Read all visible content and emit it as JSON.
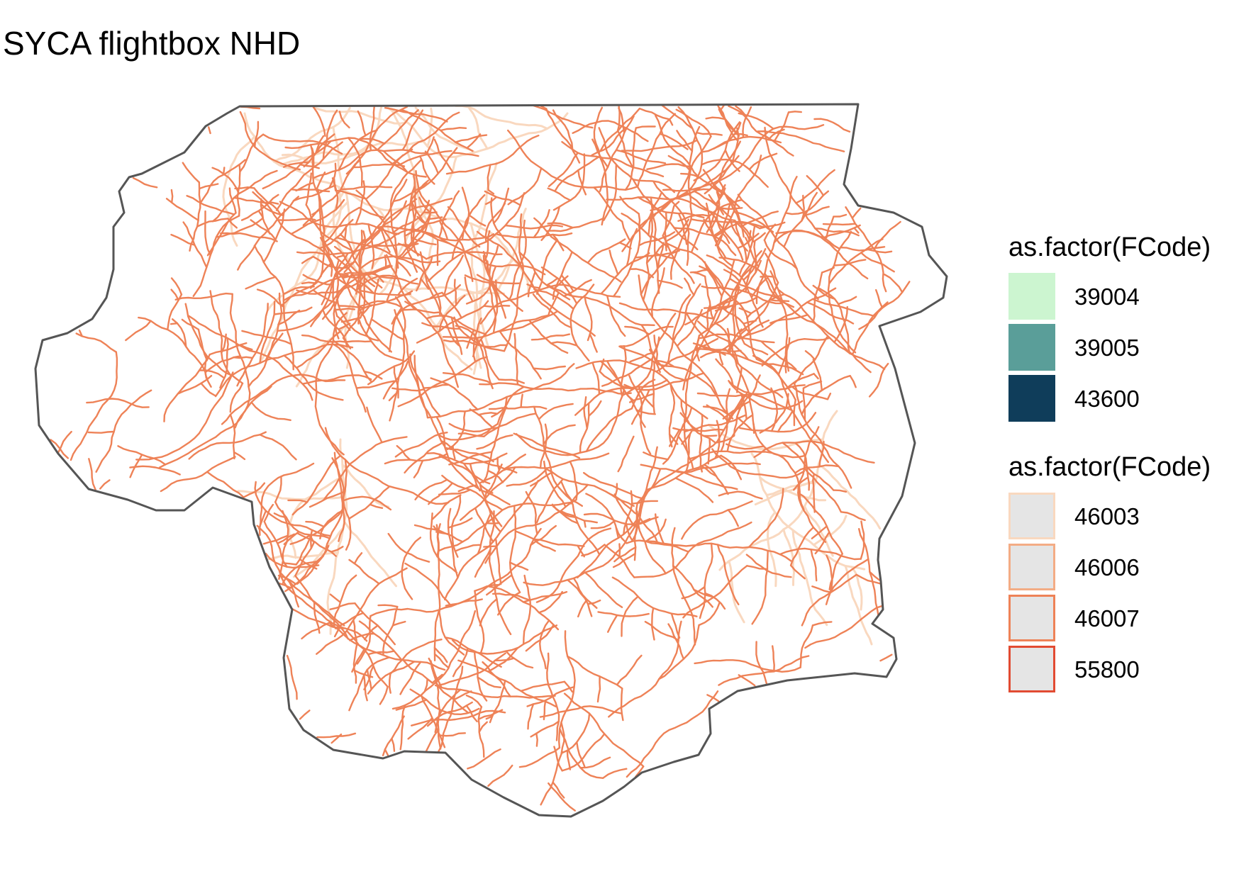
{
  "title": "SYCA flightbox NHD",
  "map": {
    "boundary_color": "#555555",
    "water_color": "#ffffff"
  },
  "legends": [
    {
      "title": "as.factor(FCode)",
      "kind": "fill",
      "items": [
        {
          "label": "39004",
          "fill": "#ccf5d0",
          "stroke": "none"
        },
        {
          "label": "39005",
          "fill": "#5a9e99",
          "stroke": "none"
        },
        {
          "label": "43600",
          "fill": "#0f3d5a",
          "stroke": "none"
        }
      ]
    },
    {
      "title": "as.factor(FCode)",
      "kind": "line",
      "items": [
        {
          "label": "46003",
          "fill": "#e5e5e5",
          "stroke": "#f9d8bf"
        },
        {
          "label": "46006",
          "fill": "#e5e5e5",
          "stroke": "#f3ac85"
        },
        {
          "label": "46007",
          "fill": "#e5e5e5",
          "stroke": "#ee8257"
        },
        {
          "label": "55800",
          "fill": "#e5e5e5",
          "stroke": "#e24b32"
        }
      ]
    }
  ]
}
